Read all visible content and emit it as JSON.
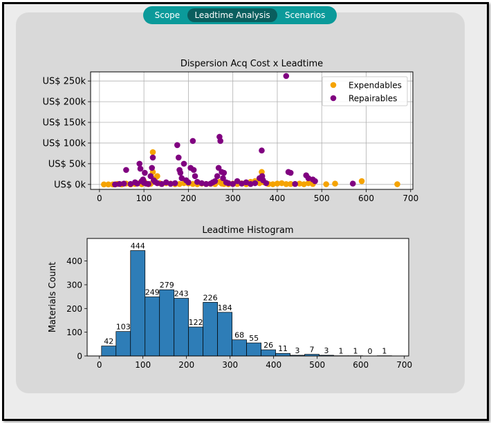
{
  "tabs": [
    {
      "label": "Scope",
      "active": false
    },
    {
      "label": "Leadtime Analysis",
      "active": true
    },
    {
      "label": "Scenarios",
      "active": false
    }
  ],
  "colors": {
    "tabbar": "#0b9a9a",
    "tab_active": "#0a5e5e",
    "expendables": "#f5a300",
    "repairables": "#800080",
    "bars": "#2e7db7"
  },
  "chart_data": [
    {
      "type": "scatter",
      "title": "Dispersion Acq Cost x Leadtime",
      "xlim": [
        -20,
        705
      ],
      "ylim": [
        -12000,
        272000
      ],
      "xticks": [
        0,
        100,
        200,
        300,
        400,
        500,
        600,
        700
      ],
      "xtick_labels": [
        "0",
        "100",
        "200",
        "300",
        "400",
        "500",
        "600",
        "700"
      ],
      "yticks": [
        0,
        50000,
        100000,
        150000,
        200000,
        250000
      ],
      "ytick_labels": [
        "US$ 0k",
        "US$ 50k",
        "US$ 100k",
        "US$ 150k",
        "US$ 200k",
        "US$ 250k"
      ],
      "grid": true,
      "legend": "top-right",
      "series": [
        {
          "name": "Expendables",
          "color": "#f5a300",
          "points": [
            [
              10,
              0
            ],
            [
              20,
              0
            ],
            [
              30,
              0
            ],
            [
              40,
              1000
            ],
            [
              50,
              0
            ],
            [
              60,
              2000
            ],
            [
              70,
              0
            ],
            [
              80,
              1000
            ],
            [
              90,
              3000
            ],
            [
              95,
              500
            ],
            [
              100,
              8000
            ],
            [
              105,
              2000
            ],
            [
              110,
              500
            ],
            [
              115,
              1500
            ],
            [
              120,
              78000
            ],
            [
              120,
              30000
            ],
            [
              122,
              10000
            ],
            [
              125,
              15000
            ],
            [
              130,
              20000
            ],
            [
              135,
              3000
            ],
            [
              140,
              1000
            ],
            [
              150,
              3000
            ],
            [
              160,
              2000
            ],
            [
              170,
              500
            ],
            [
              180,
              1000
            ],
            [
              190,
              3000
            ],
            [
              200,
              2500
            ],
            [
              210,
              1000
            ],
            [
              220,
              500
            ],
            [
              230,
              2000
            ],
            [
              240,
              1000
            ],
            [
              250,
              1500
            ],
            [
              255,
              3000
            ],
            [
              260,
              800
            ],
            [
              270,
              6000
            ],
            [
              275,
              2000
            ],
            [
              280,
              1000
            ],
            [
              290,
              500
            ],
            [
              300,
              2000
            ],
            [
              310,
              1000
            ],
            [
              320,
              2500
            ],
            [
              330,
              500
            ],
            [
              340,
              6000
            ],
            [
              350,
              8000
            ],
            [
              360,
              3000
            ],
            [
              365,
              30000
            ],
            [
              370,
              5000
            ],
            [
              380,
              1000
            ],
            [
              390,
              500
            ],
            [
              400,
              2000
            ],
            [
              410,
              3000
            ],
            [
              420,
              800
            ],
            [
              430,
              1000
            ],
            [
              450,
              2000
            ],
            [
              460,
              500
            ],
            [
              470,
              3000
            ],
            [
              480,
              1000
            ],
            [
              510,
              500
            ],
            [
              530,
              2000
            ],
            [
              590,
              8000
            ],
            [
              670,
              500
            ]
          ]
        },
        {
          "name": "Repairables",
          "color": "#800080",
          "points": [
            [
              35,
              0
            ],
            [
              45,
              1000
            ],
            [
              55,
              2000
            ],
            [
              60,
              35000
            ],
            [
              70,
              1000
            ],
            [
              80,
              5000
            ],
            [
              85,
              2000
            ],
            [
              90,
              50000
            ],
            [
              92,
              38000
            ],
            [
              95,
              8000
            ],
            [
              98,
              12000
            ],
            [
              100,
              4000
            ],
            [
              102,
              28000
            ],
            [
              105,
              2000
            ],
            [
              110,
              1000
            ],
            [
              115,
              20000
            ],
            [
              118,
              40000
            ],
            [
              120,
              65000
            ],
            [
              122,
              10000
            ],
            [
              125,
              6000
            ],
            [
              130,
              3000
            ],
            [
              140,
              1000
            ],
            [
              150,
              5000
            ],
            [
              160,
              1500
            ],
            [
              170,
              3000
            ],
            [
              175,
              95000
            ],
            [
              178,
              65000
            ],
            [
              180,
              35000
            ],
            [
              182,
              28000
            ],
            [
              185,
              15000
            ],
            [
              190,
              50000
            ],
            [
              195,
              10000
            ],
            [
              200,
              5000
            ],
            [
              205,
              40000
            ],
            [
              210,
              105000
            ],
            [
              212,
              35000
            ],
            [
              215,
              20000
            ],
            [
              220,
              6000
            ],
            [
              230,
              3000
            ],
            [
              240,
              1000
            ],
            [
              250,
              2000
            ],
            [
              255,
              5000
            ],
            [
              260,
              8000
            ],
            [
              265,
              20000
            ],
            [
              268,
              40000
            ],
            [
              270,
              115000
            ],
            [
              272,
              105000
            ],
            [
              275,
              30000
            ],
            [
              278,
              15000
            ],
            [
              280,
              28000
            ],
            [
              285,
              5000
            ],
            [
              290,
              3000
            ],
            [
              300,
              1000
            ],
            [
              310,
              8000
            ],
            [
              320,
              2000
            ],
            [
              330,
              5000
            ],
            [
              340,
              1000
            ],
            [
              350,
              3000
            ],
            [
              360,
              15000
            ],
            [
              365,
              82000
            ],
            [
              366,
              20000
            ],
            [
              368,
              10000
            ],
            [
              375,
              3000
            ],
            [
              420,
              262000
            ],
            [
              425,
              30000
            ],
            [
              430,
              28000
            ],
            [
              440,
              1000
            ],
            [
              465,
              22000
            ],
            [
              470,
              15000
            ],
            [
              480,
              12000
            ],
            [
              485,
              8000
            ],
            [
              570,
              2000
            ]
          ]
        }
      ]
    },
    {
      "type": "bar",
      "title": "Leadtime Histogram",
      "ylabel": "Materials Count",
      "xlim": [
        -28,
        710
      ],
      "ylim": [
        0,
        495
      ],
      "xticks": [
        0,
        100,
        200,
        300,
        400,
        500,
        600,
        700
      ],
      "xtick_labels": [
        "0",
        "100",
        "200",
        "300",
        "400",
        "500",
        "600",
        "700"
      ],
      "yticks": [
        0,
        100,
        200,
        300,
        400
      ],
      "ytick_labels": [
        "0",
        "100",
        "200",
        "300",
        "400"
      ],
      "bin_start": 5,
      "bin_width": 33.3,
      "values": [
        42,
        103,
        444,
        249,
        279,
        243,
        122,
        226,
        184,
        68,
        55,
        26,
        11,
        3,
        7,
        3,
        1,
        1,
        0,
        1
      ],
      "value_labels": [
        "42",
        "103",
        "444",
        "249",
        "279",
        "243",
        "122",
        "226",
        "184",
        "68",
        "55",
        "26",
        "11",
        "3",
        "7",
        "3",
        "1",
        "1",
        "0",
        "1"
      ]
    }
  ]
}
